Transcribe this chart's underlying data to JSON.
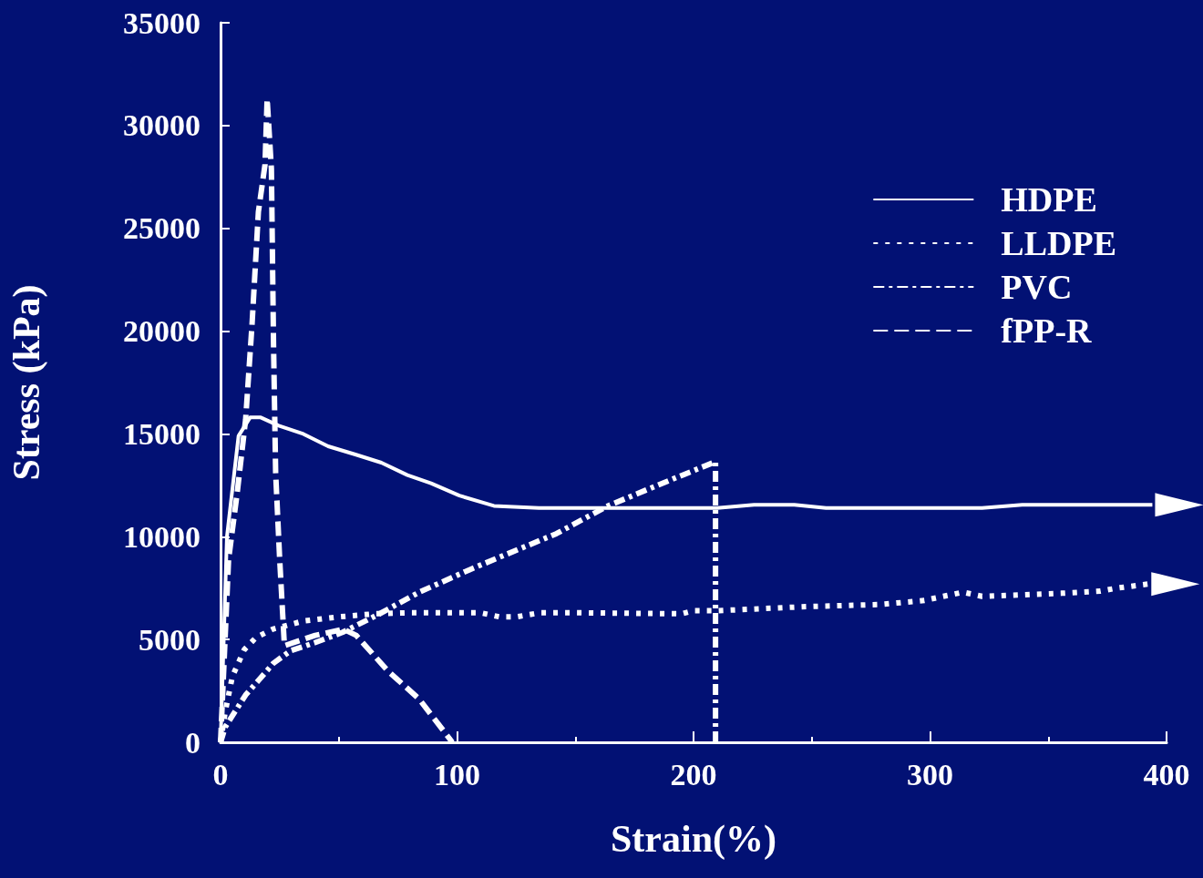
{
  "chart_data": {
    "type": "line",
    "xlabel": "Strain(%)",
    "ylabel": "Stress (kPa)",
    "xlim": [
      0,
      400
    ],
    "xticks": [
      0,
      100,
      200,
      300,
      400
    ],
    "ylim": [
      0,
      35000
    ],
    "yticks": [
      0,
      5000,
      10000,
      15000,
      20000,
      25000,
      30000,
      35000
    ],
    "grid": false,
    "legend": "top right",
    "marker": "none",
    "series": [
      {
        "name": "HDPE",
        "color": "#ffffff",
        "line_style": "solid",
        "x": [
          0,
          2.7,
          7.6,
          12.5,
          17,
          24.6,
          35,
          45.5,
          57,
          68,
          79,
          89,
          101,
          115.6,
          134.6,
          210,
          225.6,
          242.6,
          256,
          322,
          339,
          394
        ],
        "values": [
          0,
          10000,
          14900,
          15800,
          15800,
          15400,
          15000,
          14400,
          14000,
          13600,
          13000,
          12600,
          12000,
          11500,
          11400,
          11400,
          11550,
          11550,
          11400,
          11400,
          11550,
          11550
        ]
      },
      {
        "name": "LLDPE",
        "color": "#ffffff",
        "line_style": "dotted",
        "x": [
          0,
          2,
          5,
          10,
          15,
          22,
          35,
          50,
          65,
          80,
          100,
          110,
          118,
          125,
          135,
          150,
          195,
          200,
          210,
          247.6,
          278.7,
          297.6,
          305.6,
          314,
          322,
          355.6,
          372,
          379,
          392.4
        ],
        "values": [
          0,
          1500,
          3200,
          4500,
          5100,
          5500,
          5900,
          6100,
          6250,
          6300,
          6300,
          6300,
          6100,
          6100,
          6300,
          6300,
          6250,
          6400,
          6400,
          6600,
          6700,
          6900,
          7100,
          7300,
          7100,
          7250,
          7350,
          7500,
          7700
        ]
      },
      {
        "name": "PVC",
        "color": "#ffffff",
        "line_style": "dashdot",
        "x": [
          0,
          2,
          10.6,
          22.4,
          29.6,
          40,
          51.6,
          66.4,
          84,
          105.4,
          120,
          142,
          163.8,
          185.8,
          209.3,
          209.3
        ],
        "values": [
          0,
          750,
          2300,
          3850,
          4450,
          4850,
          5350,
          6200,
          7300,
          8400,
          9100,
          10150,
          11500,
          12550,
          13650,
          0
        ]
      },
      {
        "name": "fPP-R",
        "color": "#ffffff",
        "line_style": "dashed",
        "x": [
          0,
          3.4,
          7,
          10.6,
          13.3,
          16,
          18.8,
          19.7,
          21.5,
          22.4,
          23.3,
          25,
          27,
          40,
          52,
          57.4,
          70.5,
          84,
          98
        ],
        "values": [
          0,
          8900,
          12100,
          15700,
          20300,
          25800,
          28100,
          31300,
          27900,
          19400,
          13100,
          8900,
          4700,
          5200,
          5500,
          5200,
          3500,
          2100,
          0
        ]
      }
    ]
  }
}
